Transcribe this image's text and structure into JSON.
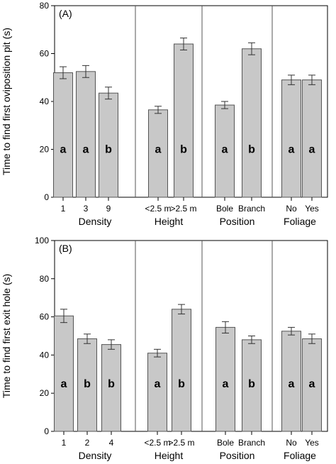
{
  "chart_data": [
    {
      "type": "bar",
      "panel_label": "(A)",
      "ylabel": "Time to find first oviposition pit (s)",
      "ylim": [
        0,
        80
      ],
      "yticks": [
        "0",
        "20",
        "40",
        "60",
        "80"
      ],
      "grid": false,
      "error_bars": true,
      "groups": [
        {
          "name": "Density",
          "categories": [
            "1",
            "3",
            "9"
          ],
          "values": [
            52,
            52.5,
            43.5
          ],
          "errors": [
            2.5,
            2.5,
            2.5
          ],
          "letters": [
            "a",
            "a",
            "b"
          ]
        },
        {
          "name": "Height",
          "categories": [
            "<2.5 m",
            ">2.5 m"
          ],
          "values": [
            36.5,
            64
          ],
          "errors": [
            1.5,
            2.5
          ],
          "letters": [
            "a",
            "b"
          ]
        },
        {
          "name": "Position",
          "categories": [
            "Bole",
            "Branch"
          ],
          "values": [
            38.5,
            62
          ],
          "errors": [
            1.5,
            2.5
          ],
          "letters": [
            "a",
            "b"
          ]
        },
        {
          "name": "Foliage",
          "categories": [
            "No",
            "Yes"
          ],
          "values": [
            49,
            49
          ],
          "errors": [
            2,
            2
          ],
          "letters": [
            "a",
            "a"
          ]
        }
      ]
    },
    {
      "type": "bar",
      "panel_label": "(B)",
      "ylabel": "Time to find first exit hole  (s)",
      "ylim": [
        0,
        100
      ],
      "yticks": [
        "0",
        "20",
        "40",
        "60",
        "80",
        "100"
      ],
      "grid": false,
      "error_bars": true,
      "groups": [
        {
          "name": "Density",
          "categories": [
            "1",
            "2",
            "4"
          ],
          "values": [
            60.5,
            48.5,
            45.5
          ],
          "errors": [
            3.5,
            2.5,
            2.5
          ],
          "letters": [
            "a",
            "b",
            "b"
          ]
        },
        {
          "name": "Height",
          "categories": [
            "<2.5 m",
            ">2.5 m"
          ],
          "values": [
            41,
            64
          ],
          "errors": [
            2,
            2.5
          ],
          "letters": [
            "a",
            "b"
          ]
        },
        {
          "name": "Position",
          "categories": [
            "Bole",
            "Branch"
          ],
          "values": [
            54.5,
            48
          ],
          "errors": [
            3,
            2
          ],
          "letters": [
            "a",
            "b"
          ]
        },
        {
          "name": "Foliage",
          "categories": [
            "No",
            "Yes"
          ],
          "values": [
            52.5,
            48.5
          ],
          "errors": [
            2,
            2.5
          ],
          "letters": [
            "a",
            "a"
          ]
        }
      ]
    }
  ],
  "colors": {
    "bar_fill": "#c8c8c8",
    "bar_stroke": "#555555",
    "axis": "#000000",
    "divider": "#555555"
  }
}
